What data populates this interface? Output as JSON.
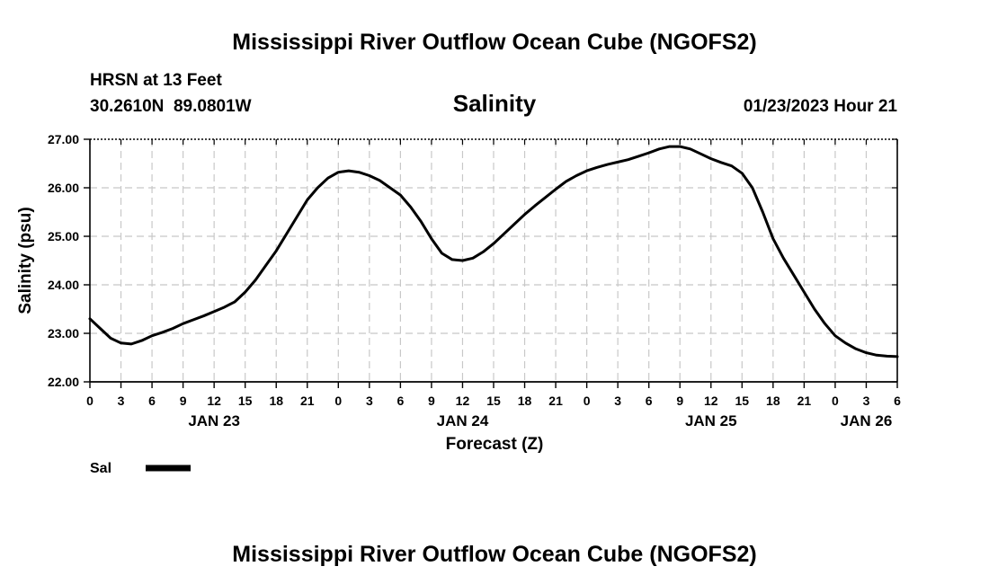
{
  "page": {
    "title_top": "Mississippi River Outflow Ocean Cube (NGOFS2)",
    "title_bottom": "Mississippi River Outflow Ocean Cube (NGOFS2)",
    "station_line": "HRSN at 13 Feet",
    "coords_line": "30.2610N  89.0801W",
    "datetime": "01/23/2023 Hour 21"
  },
  "chart_data": {
    "type": "line",
    "title": "Salinity",
    "xlabel": "Forecast (Z)",
    "ylabel": "Salinity (psu)",
    "ylim": [
      22.0,
      27.0
    ],
    "y_ticks": [
      "22.00",
      "23.00",
      "24.00",
      "25.00",
      "26.00",
      "27.00"
    ],
    "x_range_hours": [
      0,
      78
    ],
    "x_ticks": [
      "0",
      "3",
      "6",
      "9",
      "12",
      "15",
      "18",
      "21",
      "0",
      "3",
      "6",
      "9",
      "12",
      "15",
      "18",
      "21",
      "0",
      "3",
      "6",
      "9",
      "12",
      "15",
      "18",
      "21",
      "0",
      "3",
      "6"
    ],
    "day_labels": [
      {
        "label": "JAN 23",
        "hour": 12
      },
      {
        "label": "JAN 24",
        "hour": 36
      },
      {
        "label": "JAN 25",
        "hour": 60
      },
      {
        "label": "JAN 26",
        "hour": 75
      }
    ],
    "grid": true,
    "legend_position": "bottom-left",
    "series": [
      {
        "name": "Sal",
        "color": "#000000",
        "x": [
          0,
          1,
          2,
          3,
          4,
          5,
          6,
          7,
          8,
          9,
          10,
          11,
          12,
          13,
          14,
          15,
          16,
          17,
          18,
          19,
          20,
          21,
          22,
          23,
          24,
          25,
          26,
          27,
          28,
          29,
          30,
          31,
          32,
          33,
          34,
          35,
          36,
          37,
          38,
          39,
          40,
          41,
          42,
          43,
          44,
          45,
          46,
          47,
          48,
          49,
          50,
          51,
          52,
          53,
          54,
          55,
          56,
          57,
          58,
          59,
          60,
          61,
          62,
          63,
          64,
          65,
          66,
          67,
          68,
          69,
          70,
          71,
          72,
          73,
          74,
          75,
          76,
          77,
          78
        ],
        "y": [
          23.3,
          23.1,
          22.9,
          22.8,
          22.78,
          22.85,
          22.95,
          23.02,
          23.1,
          23.2,
          23.28,
          23.36,
          23.45,
          23.54,
          23.65,
          23.85,
          24.1,
          24.4,
          24.7,
          25.05,
          25.4,
          25.75,
          26.0,
          26.2,
          26.32,
          26.35,
          26.32,
          26.25,
          26.15,
          26.0,
          25.85,
          25.6,
          25.3,
          24.95,
          24.65,
          24.52,
          24.5,
          24.55,
          24.68,
          24.85,
          25.05,
          25.25,
          25.45,
          25.63,
          25.8,
          25.97,
          26.13,
          26.25,
          26.35,
          26.42,
          26.48,
          26.53,
          26.58,
          26.65,
          26.72,
          26.8,
          26.85,
          26.85,
          26.8,
          26.7,
          26.6,
          26.52,
          26.45,
          26.3,
          26.0,
          25.5,
          24.95,
          24.55,
          24.2,
          23.85,
          23.5,
          23.2,
          22.95,
          22.8,
          22.68,
          22.6,
          22.55,
          22.53,
          22.52
        ]
      }
    ]
  }
}
